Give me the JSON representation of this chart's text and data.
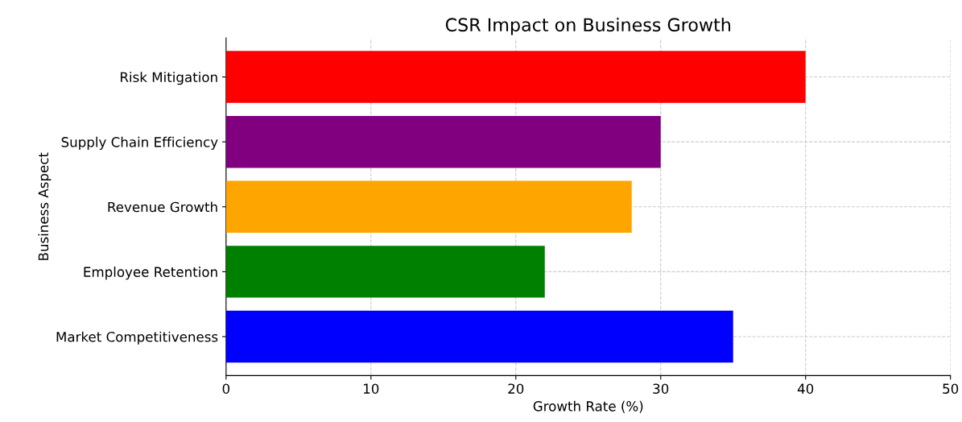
{
  "chart_data": {
    "type": "bar",
    "orientation": "horizontal",
    "title": "CSR Impact on Business Growth",
    "xlabel": "Growth Rate (%)",
    "ylabel": "Business Aspect",
    "categories": [
      "Risk Mitigation",
      "Supply Chain Efficiency",
      "Revenue Growth",
      "Employee Retention",
      "Market Competitiveness"
    ],
    "values": [
      40,
      30,
      28,
      22,
      35
    ],
    "colors": [
      "#ff0000",
      "#800080",
      "#ffa500",
      "#008000",
      "#0000ff"
    ],
    "xlim": [
      0,
      50
    ],
    "xticks": [
      0,
      10,
      20,
      30,
      40,
      50
    ],
    "grid": true
  }
}
